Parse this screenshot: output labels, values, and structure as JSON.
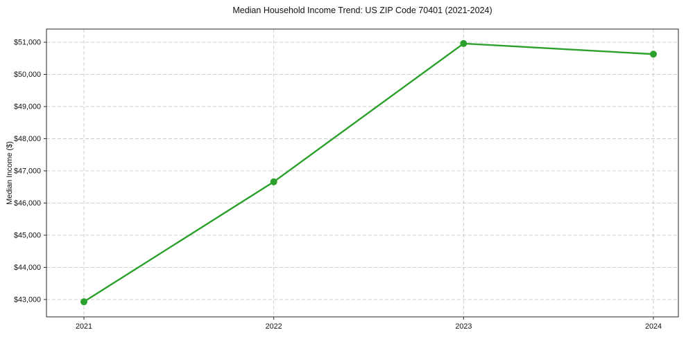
{
  "chart_data": {
    "type": "line",
    "title": "Median Household Income Trend: US ZIP Code 70401 (2021-2024)",
    "xlabel": "",
    "ylabel": "Median Income ($)",
    "categories": [
      "2021",
      "2022",
      "2023",
      "2024"
    ],
    "values": [
      42930,
      46660,
      50960,
      50630
    ],
    "ylim": [
      42460,
      51410
    ],
    "yticks": [
      43000,
      44000,
      45000,
      46000,
      47000,
      48000,
      49000,
      50000,
      51000
    ],
    "ytick_labels": [
      "$43,000",
      "$44,000",
      "$45,000",
      "$46,000",
      "$47,000",
      "$48,000",
      "$49,000",
      "$50,000",
      "$51,000"
    ],
    "grid": true,
    "grid_style": "dashed",
    "legend": "none",
    "line_color": "#2ca02c",
    "marker": "circle",
    "grid_color": "#c9c9c9",
    "axis_color": "#262626",
    "text_color": "#111111",
    "background_color": "#ffffff"
  }
}
